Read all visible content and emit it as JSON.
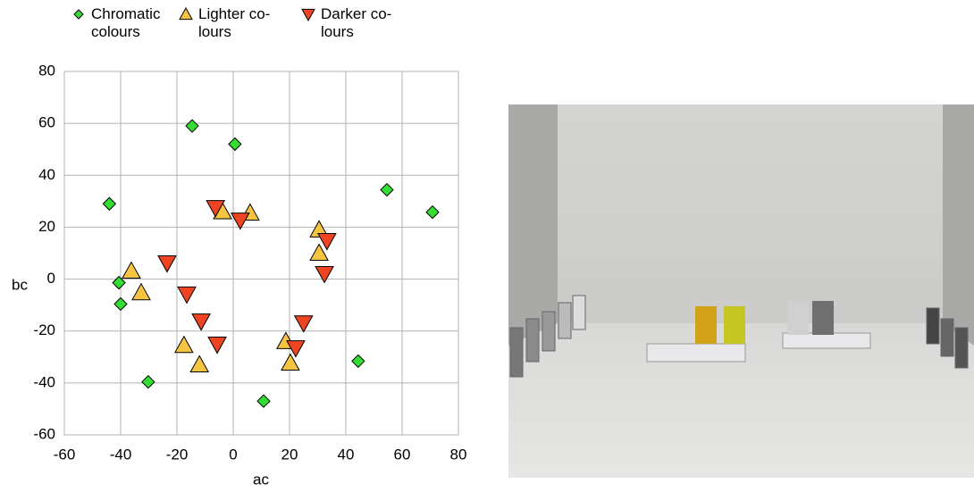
{
  "chart_data": {
    "type": "scatter",
    "xlabel": "ac",
    "ylabel": "bc",
    "xlim": [
      -60,
      80
    ],
    "ylim": [
      -60,
      80
    ],
    "xticks": [
      -60,
      -40,
      -20,
      0,
      20,
      40,
      60,
      80
    ],
    "yticks": [
      -60,
      -40,
      -20,
      0,
      20,
      40,
      60,
      80
    ],
    "grid": true,
    "legend": "top",
    "series": [
      {
        "name": "Chromatic\ncolours",
        "color": "#33dd33",
        "marker": "diamond",
        "x": [
          -44,
          -14.6,
          0.6,
          54.6,
          70.8,
          -40.6,
          -40,
          -30.2,
          10.8,
          44.4
        ],
        "values": [
          29,
          59,
          52,
          34.4,
          25.8,
          -1.4,
          -9.6,
          -39.6,
          -47,
          -31.6
        ]
      },
      {
        "name": "Lighter co-\nlours",
        "color": "#f5c542",
        "marker": "triangle-up",
        "x": [
          -36.2,
          -32.7,
          -3.8,
          6,
          30.5,
          30.5,
          -17.5,
          -12,
          18.7,
          20.3
        ],
        "values": [
          3.1,
          -5.2,
          26,
          25.5,
          19,
          10,
          -25.5,
          -33,
          -24,
          -32.3
        ]
      },
      {
        "name": "Darker co-\nlours",
        "color": "#ee4422",
        "marker": "triangle-down",
        "x": [
          -23.5,
          -16.5,
          -11.4,
          -5.7,
          -6.3,
          2.5,
          33.3,
          32.4,
          25,
          22.2
        ],
        "values": [
          6.2,
          -5.8,
          -16.2,
          -25.1,
          27.5,
          22.7,
          14.8,
          2.1,
          -16.9,
          -26.5
        ]
      }
    ]
  }
}
